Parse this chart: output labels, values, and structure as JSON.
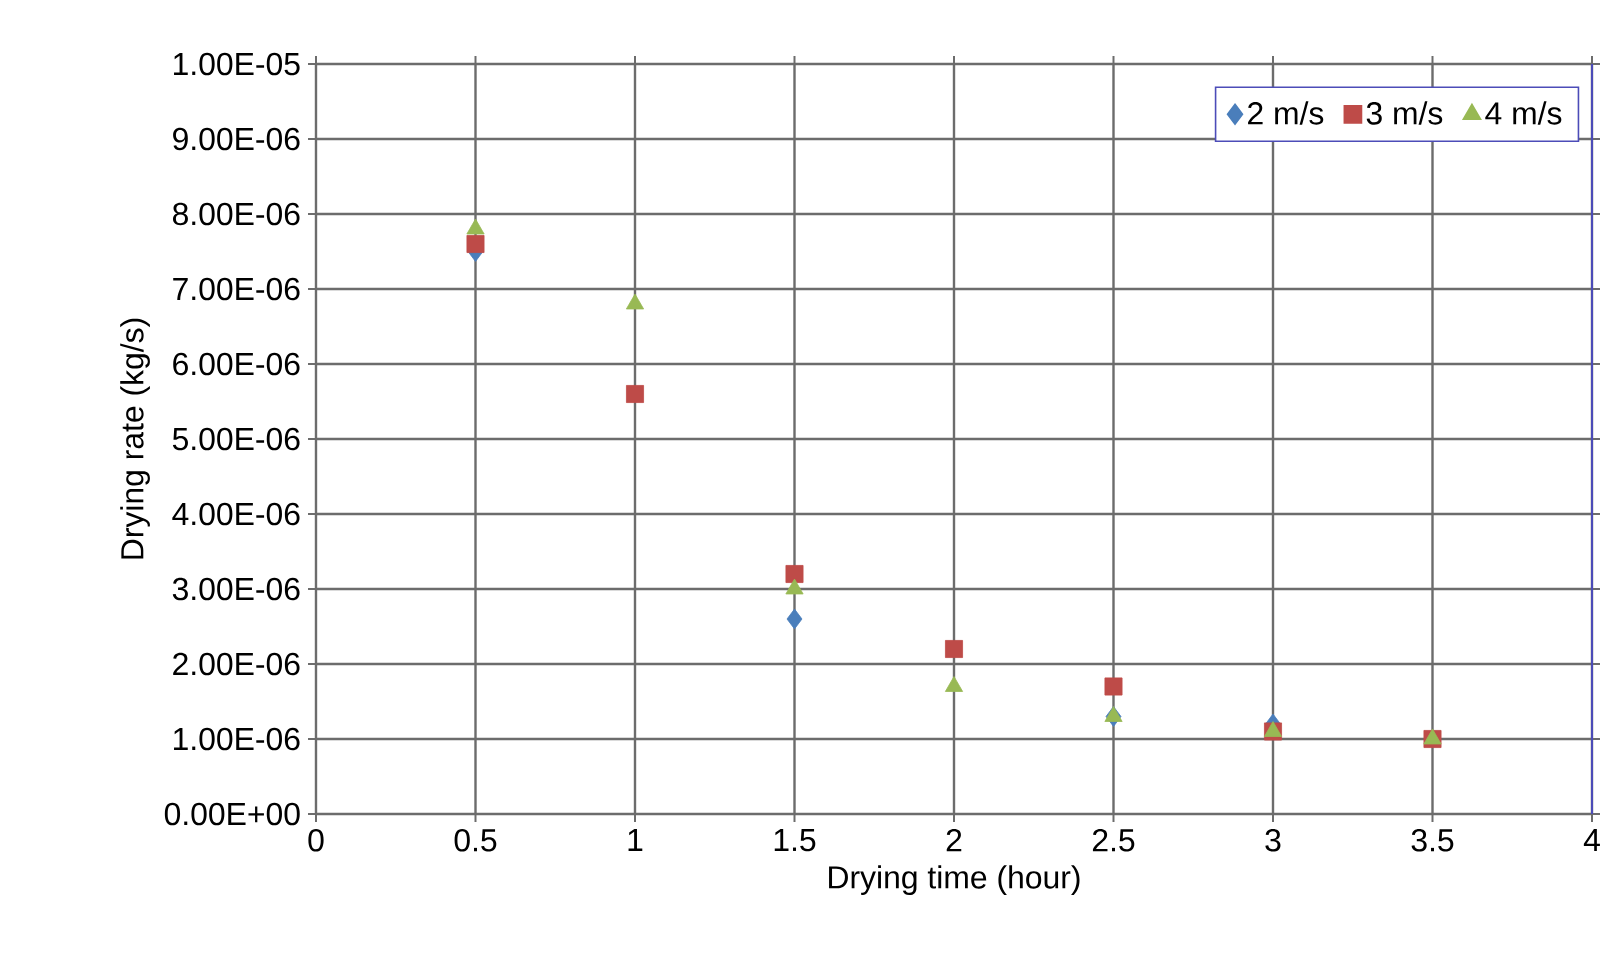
{
  "chart_data": {
    "type": "scatter",
    "xlabel": "Drying time (hour)",
    "ylabel": "Drying rate (kg/s)",
    "x": [
      0.5,
      1,
      1.5,
      2,
      2.5,
      3,
      3.5
    ],
    "series": [
      {
        "name": "2 m/s",
        "color": "#4a7ebb",
        "marker": "diamond",
        "values": [
          7.5e-06,
          null,
          2.6e-06,
          null,
          1.3e-06,
          1.2e-06,
          null
        ]
      },
      {
        "name": "3 m/s",
        "color": "#be4b48",
        "marker": "square",
        "values": [
          7.6e-06,
          5.6e-06,
          3.2e-06,
          2.2e-06,
          1.7e-06,
          1.1e-06,
          1e-06
        ]
      },
      {
        "name": "4 m/s",
        "color": "#98b954",
        "marker": "triangle",
        "values": [
          7.8e-06,
          6.8e-06,
          3e-06,
          1.7e-06,
          1.3e-06,
          1.1e-06,
          1e-06
        ]
      }
    ],
    "xlim": [
      0,
      4
    ],
    "xticks": [
      0,
      0.5,
      1,
      1.5,
      2,
      2.5,
      3,
      3.5,
      4
    ],
    "ylim": [
      0,
      1e-05
    ],
    "yticks": [
      {
        "value": 0,
        "label": "0.00E+00"
      },
      {
        "value": 1e-06,
        "label": "1.00E-06"
      },
      {
        "value": 2e-06,
        "label": "2.00E-06"
      },
      {
        "value": 3e-06,
        "label": "3.00E-06"
      },
      {
        "value": 4e-06,
        "label": "4.00E-06"
      },
      {
        "value": 5e-06,
        "label": "5.00E-06"
      },
      {
        "value": 6e-06,
        "label": "6.00E-06"
      },
      {
        "value": 7e-06,
        "label": "7.00E-06"
      },
      {
        "value": 8e-06,
        "label": "8.00E-06"
      },
      {
        "value": 9e-06,
        "label": "9.00E-06"
      },
      {
        "value": 1e-05,
        "label": "1.00E-05"
      }
    ],
    "grid": true,
    "legend": "top right"
  }
}
